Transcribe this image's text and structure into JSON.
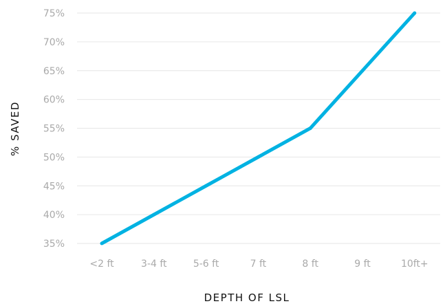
{
  "chart_data": {
    "type": "line",
    "title": "",
    "xlabel": "DEPTH OF LSL",
    "ylabel": "% SAVED",
    "categories": [
      "<2 ft",
      "3-4 ft",
      "5-6 ft",
      "7 ft",
      "8 ft",
      "9 ft",
      "10ft+"
    ],
    "y_ticks": [
      35,
      40,
      45,
      50,
      55,
      60,
      65,
      70,
      75
    ],
    "y_tick_labels": [
      "35%",
      "40%",
      "45%",
      "50%",
      "55%",
      "60%",
      "65%",
      "70%",
      "75%"
    ],
    "ylim": [
      35,
      75
    ],
    "grid": true,
    "legend": "none",
    "series": [
      {
        "values": [
          35,
          40,
          45,
          50,
          55,
          65,
          75
        ],
        "color": "#00b2e2"
      }
    ]
  }
}
